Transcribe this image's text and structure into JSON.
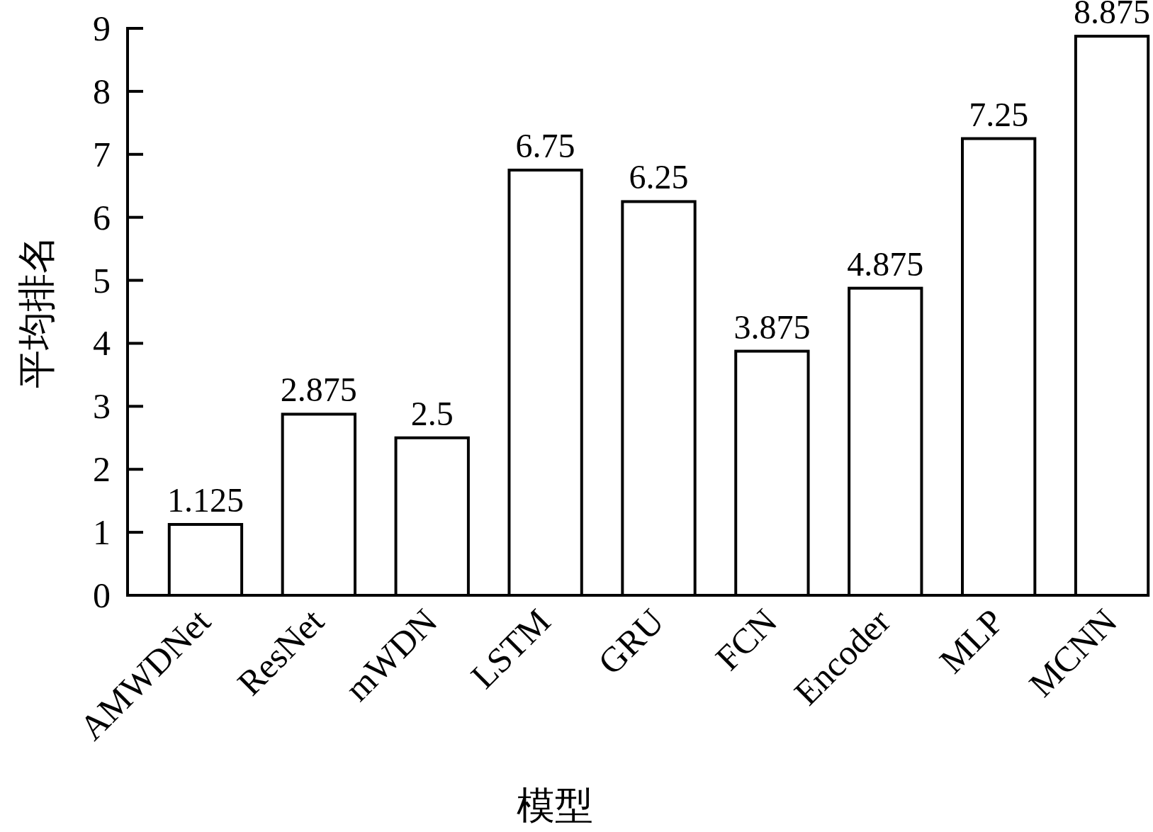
{
  "chart_data": {
    "type": "bar",
    "xlabel": "模型",
    "ylabel": "平均排名",
    "categories": [
      "AMWDNet",
      "ResNet",
      "mWDN",
      "LSTM",
      "GRU",
      "FCN",
      "Encoder",
      "MLP",
      "MCNN"
    ],
    "values": [
      1.125,
      2.875,
      2.5,
      6.75,
      6.25,
      3.875,
      4.875,
      7.25,
      8.875
    ],
    "color": "#ffffff",
    "ylim": [
      0,
      9
    ],
    "yticks": [
      0,
      1,
      2,
      3,
      4,
      5,
      6,
      7,
      8,
      9
    ],
    "data_labels": true
  }
}
